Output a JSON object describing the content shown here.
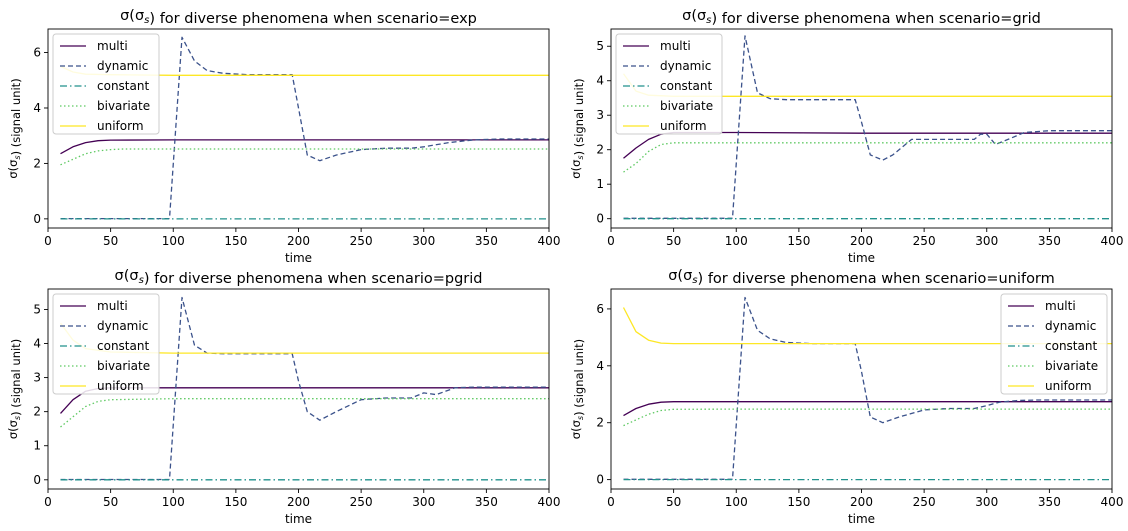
{
  "chart_data": [
    {
      "type": "line",
      "title": "σ(σ_s) for diverse phenomena when scenario=exp",
      "xlabel": "time",
      "ylabel": "σ(σ_s) (signal unit)",
      "xlim": [
        0,
        400
      ],
      "ylim": [
        -0.33,
        6.85
      ],
      "xticks": [
        0,
        50,
        100,
        150,
        200,
        250,
        300,
        350,
        400
      ],
      "yticks": [
        0,
        2,
        4,
        6
      ],
      "legend_position": "upper-left",
      "series": [
        {
          "name": "multi",
          "x": [
            10,
            20,
            30,
            40,
            50,
            100,
            200,
            300,
            400
          ],
          "y": [
            2.35,
            2.6,
            2.75,
            2.82,
            2.84,
            2.85,
            2.85,
            2.85,
            2.85
          ]
        },
        {
          "name": "dynamic",
          "x": [
            10,
            50,
            97,
            107,
            117,
            127,
            140,
            160,
            195,
            200,
            207,
            217,
            230,
            250,
            270,
            290,
            300,
            320,
            340,
            360,
            400
          ],
          "y": [
            0.01,
            0.01,
            0.01,
            6.55,
            5.7,
            5.35,
            5.25,
            5.2,
            5.2,
            4.0,
            2.3,
            2.1,
            2.3,
            2.5,
            2.55,
            2.55,
            2.6,
            2.75,
            2.85,
            2.88,
            2.88
          ]
        },
        {
          "name": "constant",
          "x": [
            10,
            400
          ],
          "y": [
            0.0,
            0.0
          ]
        },
        {
          "name": "bivariate",
          "x": [
            10,
            20,
            30,
            40,
            50,
            60,
            100,
            400
          ],
          "y": [
            1.95,
            2.15,
            2.35,
            2.45,
            2.5,
            2.52,
            2.52,
            2.52
          ]
        },
        {
          "name": "uniform",
          "x": [
            10,
            20,
            30,
            50,
            100,
            400
          ],
          "y": [
            5.5,
            5.3,
            5.22,
            5.2,
            5.18,
            5.18
          ]
        }
      ]
    },
    {
      "type": "line",
      "title": "σ(σ_s) for diverse phenomena when scenario=grid",
      "xlabel": "time",
      "ylabel": "σ(σ_s) (signal unit)",
      "xlim": [
        0,
        400
      ],
      "ylim": [
        -0.27,
        5.5
      ],
      "xticks": [
        0,
        50,
        100,
        150,
        200,
        250,
        300,
        350,
        400
      ],
      "yticks": [
        0,
        1,
        2,
        3,
        4,
        5
      ],
      "legend_position": "upper-left",
      "series": [
        {
          "name": "multi",
          "x": [
            10,
            20,
            30,
            40,
            50,
            100,
            200,
            300,
            400
          ],
          "y": [
            1.75,
            2.05,
            2.3,
            2.45,
            2.5,
            2.5,
            2.48,
            2.48,
            2.48
          ]
        },
        {
          "name": "dynamic",
          "x": [
            10,
            50,
            97,
            107,
            117,
            127,
            140,
            160,
            195,
            200,
            207,
            217,
            225,
            240,
            260,
            290,
            295,
            300,
            307,
            317,
            330,
            350,
            400
          ],
          "y": [
            0.01,
            0.01,
            0.01,
            5.3,
            3.65,
            3.48,
            3.45,
            3.45,
            3.45,
            2.8,
            1.85,
            1.7,
            1.85,
            2.3,
            2.3,
            2.3,
            2.45,
            2.45,
            2.15,
            2.3,
            2.5,
            2.55,
            2.55
          ]
        },
        {
          "name": "constant",
          "x": [
            10,
            400
          ],
          "y": [
            0.0,
            0.0
          ]
        },
        {
          "name": "bivariate",
          "x": [
            10,
            20,
            30,
            40,
            50,
            100,
            400
          ],
          "y": [
            1.35,
            1.6,
            1.95,
            2.15,
            2.2,
            2.2,
            2.2
          ]
        },
        {
          "name": "uniform",
          "x": [
            10,
            20,
            30,
            50,
            100,
            400
          ],
          "y": [
            4.2,
            3.7,
            3.58,
            3.55,
            3.55,
            3.55
          ]
        }
      ]
    },
    {
      "type": "line",
      "title": "σ(σ_s) for diverse phenomena when scenario=pgrid",
      "xlabel": "time",
      "ylabel": "σ(σ_s) (signal unit)",
      "xlim": [
        0,
        400
      ],
      "ylim": [
        -0.27,
        5.6
      ],
      "xticks": [
        0,
        50,
        100,
        150,
        200,
        250,
        300,
        350,
        400
      ],
      "yticks": [
        0,
        1,
        2,
        3,
        4,
        5
      ],
      "legend_position": "upper-left",
      "series": [
        {
          "name": "multi",
          "x": [
            10,
            20,
            30,
            40,
            50,
            100,
            400
          ],
          "y": [
            1.95,
            2.35,
            2.6,
            2.68,
            2.7,
            2.7,
            2.7
          ]
        },
        {
          "name": "dynamic",
          "x": [
            10,
            50,
            97,
            107,
            117,
            127,
            140,
            160,
            195,
            200,
            207,
            217,
            230,
            250,
            270,
            290,
            300,
            310,
            325,
            340,
            400
          ],
          "y": [
            0.01,
            0.01,
            0.01,
            5.35,
            3.95,
            3.72,
            3.7,
            3.7,
            3.7,
            2.9,
            2.0,
            1.75,
            2.0,
            2.35,
            2.4,
            2.4,
            2.55,
            2.5,
            2.7,
            2.72,
            2.72
          ]
        },
        {
          "name": "constant",
          "x": [
            10,
            400
          ],
          "y": [
            0.0,
            0.0
          ]
        },
        {
          "name": "bivariate",
          "x": [
            10,
            20,
            30,
            40,
            50,
            100,
            400
          ],
          "y": [
            1.55,
            1.85,
            2.15,
            2.3,
            2.35,
            2.38,
            2.38
          ]
        },
        {
          "name": "uniform",
          "x": [
            10,
            20,
            30,
            50,
            100,
            400
          ],
          "y": [
            4.6,
            4.1,
            3.85,
            3.75,
            3.72,
            3.72
          ]
        }
      ]
    },
    {
      "type": "line",
      "title": "σ(σ_s) for diverse phenomena when scenario=uniform",
      "xlabel": "time",
      "ylabel": "σ(σ_s) (signal unit)",
      "xlim": [
        0,
        400
      ],
      "ylim": [
        -0.33,
        6.7
      ],
      "xticks": [
        0,
        50,
        100,
        150,
        200,
        250,
        300,
        350,
        400
      ],
      "yticks": [
        0,
        2,
        4,
        6
      ],
      "legend_position": "upper-right",
      "series": [
        {
          "name": "multi",
          "x": [
            10,
            20,
            30,
            40,
            50,
            100,
            400
          ],
          "y": [
            2.25,
            2.5,
            2.65,
            2.72,
            2.74,
            2.74,
            2.74
          ]
        },
        {
          "name": "dynamic",
          "x": [
            10,
            50,
            97,
            107,
            117,
            127,
            140,
            160,
            195,
            200,
            207,
            217,
            230,
            250,
            270,
            290,
            300,
            310,
            325,
            340,
            400
          ],
          "y": [
            0.01,
            0.01,
            0.01,
            6.4,
            5.25,
            4.95,
            4.82,
            4.78,
            4.78,
            3.8,
            2.2,
            2.0,
            2.2,
            2.45,
            2.5,
            2.5,
            2.6,
            2.72,
            2.78,
            2.8,
            2.8
          ]
        },
        {
          "name": "constant",
          "x": [
            10,
            400
          ],
          "y": [
            0.0,
            0.0
          ]
        },
        {
          "name": "bivariate",
          "x": [
            10,
            20,
            30,
            40,
            50,
            100,
            400
          ],
          "y": [
            1.9,
            2.1,
            2.3,
            2.43,
            2.47,
            2.48,
            2.48
          ]
        },
        {
          "name": "uniform",
          "x": [
            10,
            20,
            30,
            40,
            50,
            100,
            400
          ],
          "y": [
            6.05,
            5.2,
            4.9,
            4.8,
            4.78,
            4.78,
            4.78
          ]
        }
      ]
    }
  ],
  "series_styles": {
    "multi": {
      "color": "#440154",
      "dash": ""
    },
    "dynamic": {
      "color": "#3b528b",
      "dash": "5,3"
    },
    "constant": {
      "color": "#21918c",
      "dash": "7,3,1.5,3"
    },
    "bivariate": {
      "color": "#5ec962",
      "dash": "1.5,2.5"
    },
    "uniform": {
      "color": "#fde725",
      "dash": ""
    }
  }
}
